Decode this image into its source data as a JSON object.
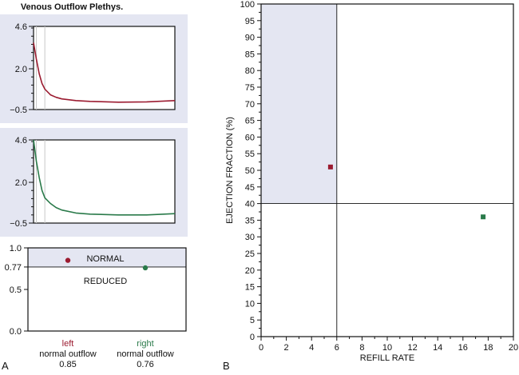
{
  "colors": {
    "panel_bg": "#e4e6f2",
    "left": "#9b1b30",
    "right": "#2a7a4a",
    "grid": "#222222"
  },
  "chart_data": [
    {
      "type": "line",
      "panel": "A",
      "title": "Venous Outflow Plethys.",
      "ylim": [
        -0.5,
        4.6
      ],
      "xlim": [
        0,
        100
      ],
      "yticks": [
        "4.6",
        "2.0",
        "−0.5"
      ],
      "ytick_values": [
        4.6,
        2.0,
        -0.5
      ],
      "markers": [
        2,
        8
      ],
      "series": [
        {
          "name": "left",
          "color": "#9b1b30",
          "x": [
            0,
            2,
            4,
            6,
            8,
            12,
            16,
            20,
            30,
            40,
            60,
            80,
            100
          ],
          "y": [
            3.6,
            2.6,
            1.7,
            1.1,
            0.75,
            0.4,
            0.25,
            0.15,
            0.05,
            0.0,
            -0.05,
            -0.03,
            0.05
          ]
        },
        {
          "name": "right",
          "color": "#2a7a4a",
          "x": [
            0,
            2,
            4,
            6,
            8,
            12,
            16,
            20,
            30,
            40,
            60,
            80,
            100
          ],
          "y": [
            4.6,
            3.3,
            2.3,
            1.5,
            1.05,
            0.7,
            0.45,
            0.3,
            0.12,
            0.05,
            0.0,
            0.0,
            0.08
          ]
        }
      ]
    },
    {
      "type": "scatter",
      "panel": "A",
      "ylim": [
        0.0,
        1.0
      ],
      "yticks": [
        "1.0",
        "0.77",
        "0.5",
        "0.0"
      ],
      "ytick_values": [
        1.0,
        0.77,
        0.5,
        0.0
      ],
      "threshold": 0.77,
      "region_labels": {
        "above": "NORMAL",
        "below": "REDUCED"
      },
      "points": [
        {
          "side": "left",
          "category": "normal outflow",
          "value_label": "0.85",
          "value": 0.85,
          "color": "#9b1b30"
        },
        {
          "side": "right",
          "category": "normal outflow",
          "value_label": "0.76",
          "value": 0.76,
          "color": "#2a7a4a"
        }
      ]
    },
    {
      "type": "scatter",
      "panel": "B",
      "xlabel": "REFILL RATE",
      "ylabel": "EJECTION FRACTION (%)",
      "xlim": [
        0,
        20
      ],
      "ylim": [
        0,
        100
      ],
      "xticks": [
        0,
        2,
        4,
        6,
        8,
        10,
        12,
        14,
        16,
        18,
        20
      ],
      "yticks": [
        0,
        5,
        10,
        15,
        20,
        25,
        30,
        35,
        40,
        45,
        50,
        55,
        60,
        65,
        70,
        75,
        80,
        85,
        90,
        95,
        100
      ],
      "threshold_x": 6,
      "threshold_y": 40,
      "shaded_region": {
        "x": [
          0,
          6
        ],
        "y": [
          40,
          100
        ]
      },
      "points": [
        {
          "name": "left",
          "x": 5.5,
          "y": 51,
          "color": "#9b1b30"
        },
        {
          "name": "right",
          "x": 17.6,
          "y": 36,
          "color": "#2a7a4a"
        }
      ]
    }
  ],
  "panel_labels": {
    "a": "A",
    "b": "B"
  }
}
